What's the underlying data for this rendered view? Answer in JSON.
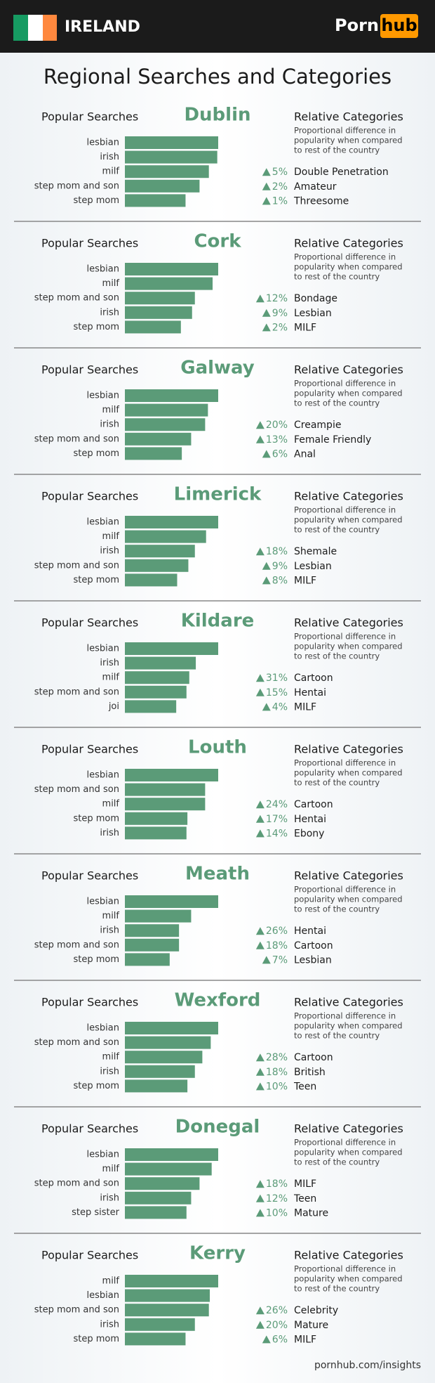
{
  "header": {
    "country": "IRELAND",
    "logo_left": "Porn",
    "logo_right": "hub"
  },
  "title": "Regional Searches and Categories",
  "labels": {
    "searches": "Popular Searches",
    "categories": "Relative Categories",
    "description": [
      "Proportional difference in",
      "popularity when compared",
      "to rest of the country"
    ]
  },
  "regions": [
    {
      "name": "Dublin",
      "searches": [
        "lesbian",
        "irish",
        "milf",
        "step mom and son",
        "step mom"
      ],
      "bars": [
        100,
        99,
        90,
        80,
        65
      ],
      "categories": [
        {
          "change": "5%",
          "name": "Double Penetration"
        },
        {
          "change": "2%",
          "name": "Amateur"
        },
        {
          "change": "1%",
          "name": "Threesome"
        }
      ]
    },
    {
      "name": "Cork",
      "searches": [
        "lesbian",
        "milf",
        "step mom and son",
        "irish",
        "step mom"
      ],
      "bars": [
        100,
        94,
        75,
        72,
        60
      ],
      "categories": [
        {
          "change": "12%",
          "name": "Bondage"
        },
        {
          "change": "9%",
          "name": "Lesbian"
        },
        {
          "change": "2%",
          "name": "MILF"
        }
      ]
    },
    {
      "name": "Galway",
      "searches": [
        "lesbian",
        "milf",
        "irish",
        "step mom and son",
        "step mom"
      ],
      "bars": [
        100,
        89,
        86,
        71,
        61
      ],
      "categories": [
        {
          "change": "20%",
          "name": "Creampie"
        },
        {
          "change": "13%",
          "name": "Female Friendly"
        },
        {
          "change": "6%",
          "name": "Anal"
        }
      ]
    },
    {
      "name": "Limerick",
      "searches": [
        "lesbian",
        "milf",
        "irish",
        "step mom and son",
        "step mom"
      ],
      "bars": [
        100,
        87,
        75,
        68,
        56
      ],
      "categories": [
        {
          "change": "18%",
          "name": "Shemale"
        },
        {
          "change": "9%",
          "name": "Lesbian"
        },
        {
          "change": "8%",
          "name": "MILF"
        }
      ]
    },
    {
      "name": "Kildare",
      "searches": [
        "lesbian",
        "irish",
        "milf",
        "step mom and son",
        "joi"
      ],
      "bars": [
        100,
        76,
        69,
        66,
        55
      ],
      "categories": [
        {
          "change": "31%",
          "name": "Cartoon"
        },
        {
          "change": "15%",
          "name": "Hentai"
        },
        {
          "change": "4%",
          "name": "MILF"
        }
      ]
    },
    {
      "name": "Louth",
      "searches": [
        "lesbian",
        "step mom and son",
        "milf",
        "step mom",
        "irish"
      ],
      "bars": [
        100,
        86,
        86,
        67,
        66
      ],
      "categories": [
        {
          "change": "24%",
          "name": "Cartoon"
        },
        {
          "change": "17%",
          "name": "Hentai"
        },
        {
          "change": "14%",
          "name": "Ebony"
        }
      ]
    },
    {
      "name": "Meath",
      "searches": [
        "lesbian",
        "milf",
        "irish",
        "step mom and son",
        "step mom"
      ],
      "bars": [
        100,
        71,
        58,
        58,
        48
      ],
      "categories": [
        {
          "change": "26%",
          "name": "Hentai"
        },
        {
          "change": "18%",
          "name": "Cartoon"
        },
        {
          "change": "7%",
          "name": "Lesbian"
        }
      ]
    },
    {
      "name": "Wexford",
      "searches": [
        "lesbian",
        "step mom and son",
        "milf",
        "irish",
        "step mom"
      ],
      "bars": [
        100,
        92,
        83,
        75,
        67
      ],
      "categories": [
        {
          "change": "28%",
          "name": "Cartoon"
        },
        {
          "change": "18%",
          "name": "British"
        },
        {
          "change": "10%",
          "name": "Teen"
        }
      ]
    },
    {
      "name": "Donegal",
      "searches": [
        "lesbian",
        "milf",
        "step mom and son",
        "irish",
        "step sister"
      ],
      "bars": [
        100,
        93,
        80,
        71,
        66
      ],
      "categories": [
        {
          "change": "18%",
          "name": "MILF"
        },
        {
          "change": "12%",
          "name": "Teen"
        },
        {
          "change": "10%",
          "name": "Mature"
        }
      ]
    },
    {
      "name": "Kerry",
      "searches": [
        "milf",
        "lesbian",
        "step mom and son",
        "irish",
        "step mom"
      ],
      "bars": [
        100,
        91,
        90,
        75,
        65
      ],
      "categories": [
        {
          "change": "26%",
          "name": "Celebrity"
        },
        {
          "change": "20%",
          "name": "Mature"
        },
        {
          "change": "6%",
          "name": "MILF"
        }
      ]
    }
  ],
  "footer": "pornhub.com/insights"
}
